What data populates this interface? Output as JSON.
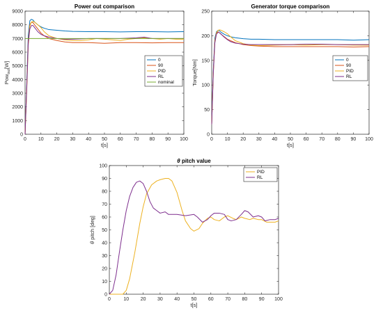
{
  "chart_data": [
    {
      "id": "power",
      "type": "line",
      "title": "Power out comparison",
      "xlabel": "t[s]",
      "ylabel_main": "Pow",
      "ylabel_sub": "out",
      "ylabel_tail": "[W]",
      "xlim": [
        0,
        100
      ],
      "ylim": [
        0,
        9000
      ],
      "xticks": [
        0,
        10,
        20,
        30,
        40,
        50,
        60,
        70,
        80,
        90,
        100
      ],
      "yticks": [
        0,
        1000,
        2000,
        3000,
        4000,
        5000,
        6000,
        7000,
        8000,
        9000
      ],
      "legend": "top-right",
      "series": [
        {
          "name": "0",
          "color": "#0072BD",
          "x": [
            0,
            1,
            2,
            3,
            4,
            5,
            6,
            8,
            10,
            12,
            15,
            20,
            25,
            30,
            40,
            50,
            60,
            70,
            80,
            90,
            100
          ],
          "y": [
            0,
            3500,
            7200,
            8300,
            8400,
            8350,
            8200,
            8000,
            7850,
            7750,
            7650,
            7600,
            7550,
            7520,
            7500,
            7500,
            7480,
            7500,
            7500,
            7480,
            7500
          ]
        },
        {
          "name": "90",
          "color": "#D95319",
          "x": [
            0,
            1,
            2,
            3,
            4,
            5,
            6,
            8,
            10,
            12,
            15,
            20,
            25,
            30,
            40,
            50,
            60,
            70,
            80,
            90,
            100
          ],
          "y": [
            0,
            3300,
            6800,
            8000,
            8200,
            8150,
            8000,
            7700,
            7400,
            7200,
            7000,
            6850,
            6750,
            6700,
            6700,
            6650,
            6700,
            6700,
            6680,
            6700,
            6700
          ]
        },
        {
          "name": "PID",
          "color": "#EDB120",
          "x": [
            0,
            1,
            2,
            3,
            4,
            5,
            6,
            8,
            10,
            12,
            15,
            20,
            25,
            30,
            35,
            40,
            45,
            50,
            55,
            60,
            65,
            70,
            75,
            80,
            85,
            90,
            95,
            100
          ],
          "y": [
            0,
            3000,
            6500,
            7900,
            8200,
            8250,
            8200,
            8000,
            7800,
            7500,
            7200,
            7000,
            6900,
            6850,
            6850,
            6900,
            7000,
            6950,
            6900,
            6850,
            6950,
            7000,
            7050,
            7000,
            6950,
            7000,
            6950,
            6950
          ]
        },
        {
          "name": "RL",
          "color": "#7E2F8E",
          "x": [
            0,
            1,
            2,
            3,
            4,
            5,
            6,
            8,
            10,
            12,
            15,
            20,
            25,
            30,
            40,
            50,
            60,
            70,
            75,
            80,
            90,
            100
          ],
          "y": [
            0,
            3200,
            6600,
            7700,
            7950,
            7950,
            7800,
            7500,
            7300,
            7200,
            7100,
            7000,
            6950,
            6950,
            7000,
            7000,
            7000,
            7050,
            7100,
            7000,
            7000,
            7000
          ]
        },
        {
          "name": "nominal",
          "color": "#77AC30",
          "x": [
            0,
            100
          ],
          "y": [
            7000,
            7000
          ]
        }
      ]
    },
    {
      "id": "torque",
      "type": "line",
      "title": "Generator torque comparison",
      "xlabel": "t[s]",
      "ylabel": "Torque[Nm]",
      "xlim": [
        0,
        100
      ],
      "ylim": [
        0,
        250
      ],
      "xticks": [
        0,
        10,
        20,
        30,
        40,
        50,
        60,
        70,
        80,
        90,
        100
      ],
      "yticks": [
        0,
        50,
        100,
        150,
        200,
        250
      ],
      "legend": "top-right",
      "series": [
        {
          "name": "0",
          "color": "#0072BD",
          "x": [
            0,
            1,
            2,
            3,
            4,
            5,
            6,
            8,
            10,
            12,
            15,
            20,
            25,
            30,
            40,
            50,
            60,
            70,
            80,
            90,
            100
          ],
          "y": [
            20,
            130,
            195,
            208,
            211,
            210,
            207,
            203,
            200,
            198,
            196,
            194,
            193,
            193,
            192,
            192,
            192,
            192,
            192,
            191,
            192
          ]
        },
        {
          "name": "90",
          "color": "#D95319",
          "x": [
            0,
            1,
            2,
            3,
            4,
            5,
            6,
            8,
            10,
            12,
            15,
            20,
            25,
            30,
            40,
            50,
            60,
            70,
            80,
            90,
            100
          ],
          "y": [
            20,
            125,
            190,
            205,
            208,
            206,
            203,
            198,
            193,
            190,
            186,
            182,
            180,
            179,
            178,
            178,
            178,
            178,
            178,
            177,
            178
          ]
        },
        {
          "name": "PID",
          "color": "#EDB120",
          "x": [
            0,
            1,
            2,
            3,
            4,
            5,
            6,
            8,
            10,
            12,
            15,
            20,
            25,
            30,
            40,
            50,
            60,
            70,
            80,
            90,
            100
          ],
          "y": [
            20,
            120,
            188,
            206,
            211,
            212,
            211,
            208,
            204,
            198,
            190,
            184,
            181,
            180,
            181,
            182,
            181,
            182,
            182,
            181,
            181
          ]
        },
        {
          "name": "RL",
          "color": "#7E2F8E",
          "x": [
            0,
            1,
            2,
            3,
            4,
            5,
            6,
            8,
            10,
            12,
            15,
            20,
            25,
            30,
            40,
            50,
            60,
            70,
            80,
            90,
            100
          ],
          "y": [
            20,
            122,
            185,
            203,
            207,
            206,
            203,
            197,
            192,
            188,
            185,
            183,
            182,
            182,
            182,
            182,
            183,
            183,
            182,
            182,
            182
          ]
        }
      ]
    },
    {
      "id": "pitch",
      "type": "line",
      "title_symbol": "θ",
      "title_rest": " pitch value",
      "xlabel": "t[s]",
      "ylabel_symbol": "θ",
      "ylabel_rest": " pitch [deg]",
      "xlim": [
        0,
        100
      ],
      "ylim": [
        0,
        100
      ],
      "xticks": [
        0,
        10,
        20,
        30,
        40,
        50,
        60,
        70,
        80,
        90,
        100
      ],
      "yticks": [
        0,
        10,
        20,
        30,
        40,
        50,
        60,
        70,
        80,
        90,
        100
      ],
      "legend": "top-right",
      "series": [
        {
          "name": "PID",
          "color": "#EDB120",
          "x": [
            0,
            8,
            10,
            12,
            15,
            18,
            20,
            22,
            25,
            28,
            30,
            33,
            35,
            37,
            40,
            43,
            45,
            48,
            50,
            53,
            55,
            58,
            60,
            62,
            65,
            68,
            70,
            73,
            75,
            78,
            80,
            83,
            85,
            88,
            90,
            93,
            95,
            98,
            100
          ],
          "y": [
            0,
            0,
            3,
            12,
            32,
            55,
            68,
            78,
            85,
            88,
            89,
            90,
            90,
            88,
            79,
            65,
            57,
            51,
            49,
            51,
            55,
            59,
            60,
            58,
            57,
            60,
            61,
            59,
            58,
            60,
            59,
            58,
            59,
            58,
            58,
            56,
            56,
            56,
            57
          ]
        },
        {
          "name": "RL",
          "color": "#7E2F8E",
          "x": [
            0,
            2,
            4,
            6,
            8,
            10,
            12,
            14,
            16,
            18,
            20,
            22,
            24,
            26,
            28,
            30,
            33,
            35,
            40,
            45,
            50,
            52,
            55,
            58,
            60,
            62,
            65,
            68,
            70,
            72,
            75,
            78,
            80,
            82,
            85,
            88,
            90,
            92,
            95,
            98,
            100
          ],
          "y": [
            0,
            3,
            15,
            33,
            50,
            65,
            76,
            83,
            87,
            88,
            86,
            80,
            72,
            67,
            65,
            63,
            64,
            62,
            62,
            61,
            62,
            60,
            56,
            58,
            61,
            63,
            63,
            62,
            58,
            57,
            58,
            62,
            65,
            64,
            60,
            61,
            60,
            57,
            58,
            58,
            59
          ]
        }
      ]
    }
  ]
}
